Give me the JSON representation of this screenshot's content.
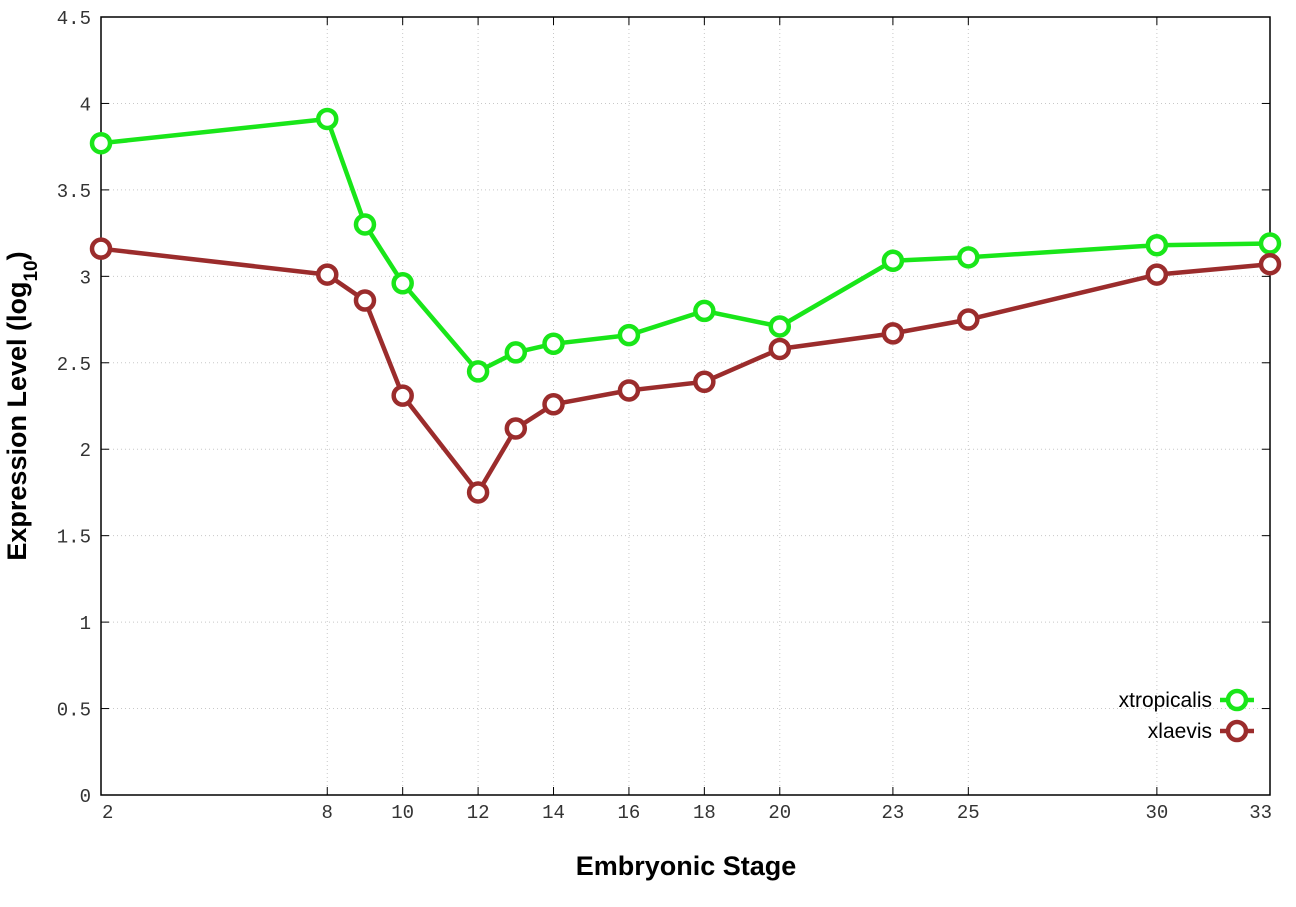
{
  "chart_data": {
    "type": "line",
    "xlabel": "Embryonic Stage",
    "ylabel_main": "Expression Level (log",
    "ylabel_sub": "10",
    "ylabel_close": ")",
    "x": [
      2,
      8,
      9,
      10,
      12,
      13,
      14,
      16,
      18,
      20,
      23,
      25,
      30,
      33
    ],
    "x_tick_labels": [
      "2",
      "8",
      "10",
      "12",
      "14",
      "16",
      "18",
      "20",
      "23",
      "25",
      "30",
      "33"
    ],
    "x_tick_values": [
      2,
      8,
      10,
      12,
      14,
      16,
      18,
      20,
      23,
      25,
      30,
      33
    ],
    "xlim": [
      2,
      33
    ],
    "ylim": [
      0,
      4.5
    ],
    "y_tick_labels": [
      "0",
      "0.5",
      "1",
      "1.5",
      "2",
      "2.5",
      "3",
      "3.5",
      "4",
      "4.5"
    ],
    "y_tick_values": [
      0,
      0.5,
      1,
      1.5,
      2,
      2.5,
      3,
      3.5,
      4,
      4.5
    ],
    "grid": true,
    "legend_position": "bottom-right",
    "series": [
      {
        "name": "xtropicalis",
        "color": "#19e619",
        "values": [
          3.77,
          3.91,
          3.3,
          2.96,
          2.45,
          2.56,
          2.61,
          2.66,
          2.8,
          2.71,
          3.09,
          3.11,
          3.18,
          3.19
        ]
      },
      {
        "name": "xlaevis",
        "color": "#9b2c2c",
        "values": [
          3.16,
          3.01,
          2.86,
          2.31,
          1.75,
          2.12,
          2.26,
          2.34,
          2.39,
          2.58,
          2.67,
          2.75,
          3.01,
          3.07
        ]
      }
    ]
  }
}
